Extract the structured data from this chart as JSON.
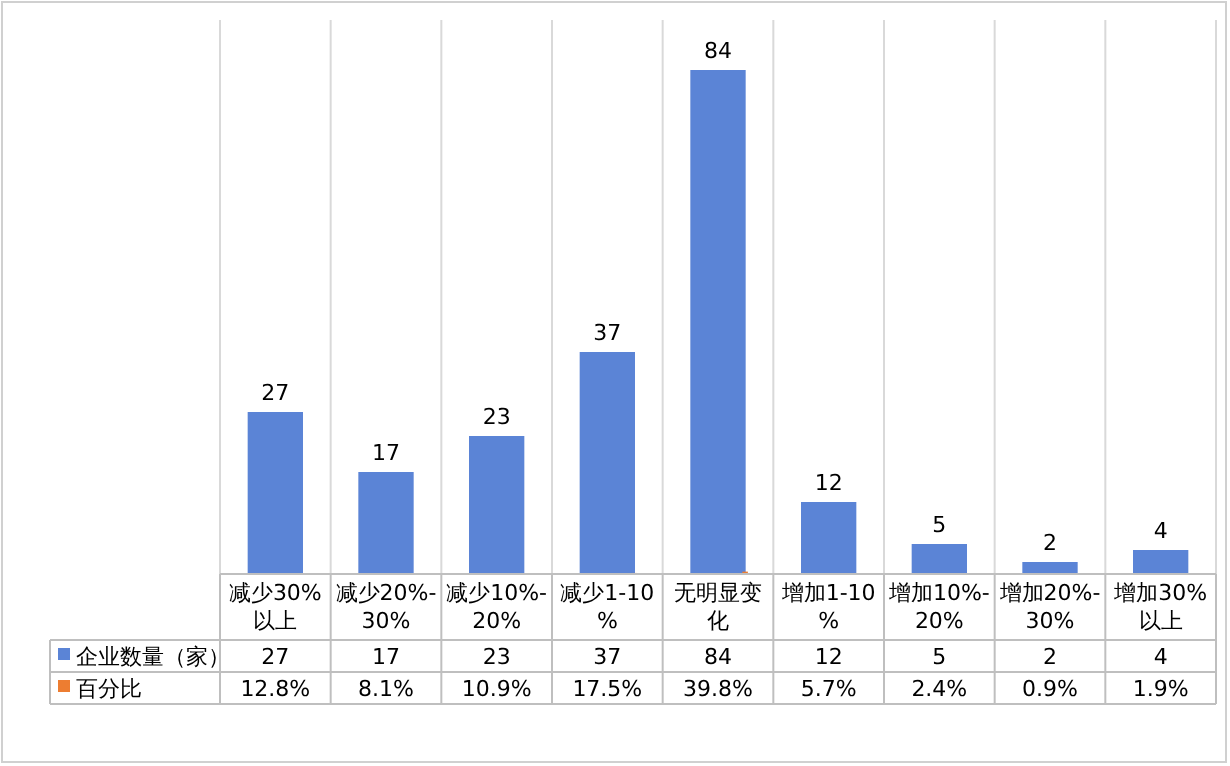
{
  "chart_data": {
    "type": "bar",
    "categories": [
      "减少30%以上",
      "减少20%-30%",
      "减少10%-20%",
      "减少1-10%",
      "无明显变化",
      "增加1-10%",
      "增加10%-20%",
      "增加20%-30%",
      "增加30%以上"
    ],
    "series": [
      {
        "name": "企业数量（家）",
        "color": "#5b84d6",
        "values": [
          27,
          17,
          23,
          37,
          84,
          12,
          5,
          2,
          4
        ],
        "value_labels": [
          "27",
          "17",
          "23",
          "37",
          "84",
          "12",
          "5",
          "2",
          "4"
        ]
      },
      {
        "name": "百分比",
        "color": "#ed7d31",
        "values": [
          0.128,
          0.081,
          0.109,
          0.175,
          0.398,
          0.057,
          0.024,
          0.009,
          0.019
        ],
        "value_labels": [
          "12.8%",
          "8.1%",
          "10.9%",
          "17.5%",
          "39.8%",
          "5.7%",
          "2.4%",
          "0.9%",
          "1.9%"
        ]
      }
    ],
    "legend": "bottom",
    "grid": "x"
  }
}
